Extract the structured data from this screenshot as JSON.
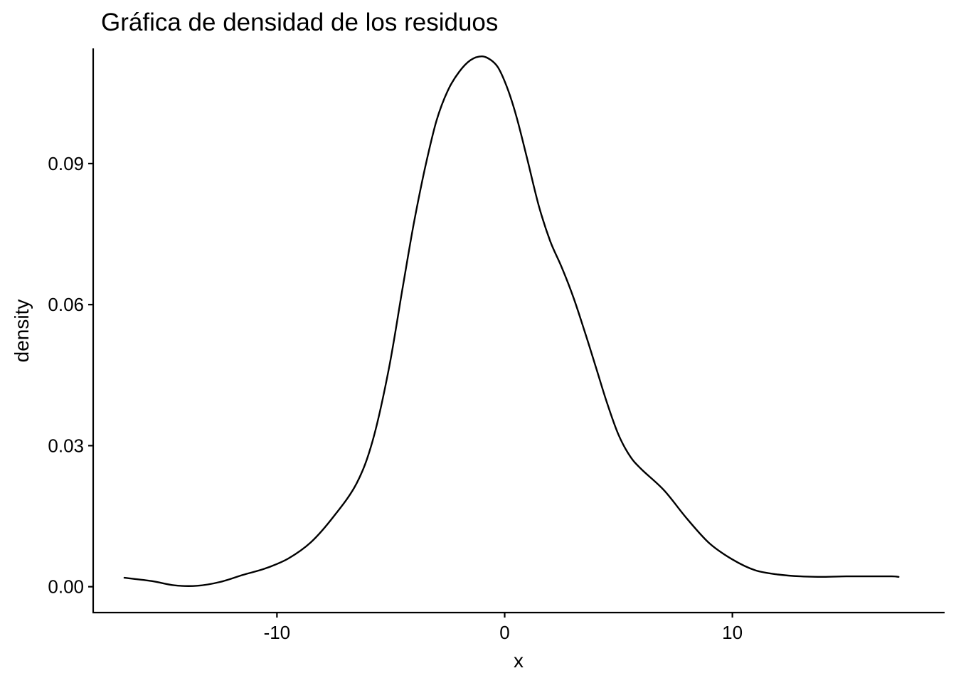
{
  "chart_data": {
    "type": "line",
    "title": "Gráfica de densidad de los residuos",
    "xlabel": "x",
    "ylabel": "density",
    "xlim": [
      -18.07,
      19.32
    ],
    "ylim": [
      -0.0055,
      0.1145
    ],
    "x_ticks": [
      -10,
      0,
      10
    ],
    "x_tick_labels": [
      "-10",
      "0",
      "10"
    ],
    "y_ticks": [
      0.0,
      0.03,
      0.06,
      0.09
    ],
    "y_tick_labels": [
      "0.00",
      "0.03",
      "0.06",
      "0.09"
    ],
    "grid": false,
    "legend": "none",
    "line_color": "#000000",
    "series": [
      {
        "x": [
          -16.7,
          -15.5,
          -14.5,
          -13.5,
          -12.5,
          -11.5,
          -10.5,
          -9.5,
          -8.5,
          -7.5,
          -6.5,
          -5.8,
          -5.1,
          -4.5,
          -4.0,
          -3.5,
          -3.0,
          -2.5,
          -2.0,
          -1.5,
          -1.0,
          -0.6,
          -0.3,
          0.0,
          0.3,
          0.6,
          1.0,
          1.5,
          2.0,
          2.5,
          3.0,
          3.5,
          4.0,
          4.5,
          5.0,
          5.5,
          6.0,
          7.0,
          8.0,
          9.0,
          10.0,
          11.0,
          12.0,
          13.0,
          14.0,
          15.0,
          16.0,
          17.0,
          17.3
        ],
        "y": [
          0.0019,
          0.0012,
          0.0003,
          0.0002,
          0.001,
          0.0025,
          0.0039,
          0.006,
          0.0095,
          0.015,
          0.022,
          0.031,
          0.046,
          0.063,
          0.077,
          0.089,
          0.099,
          0.1055,
          0.1095,
          0.112,
          0.1128,
          0.112,
          0.1105,
          0.1075,
          0.1035,
          0.0985,
          0.0908,
          0.081,
          0.0735,
          0.068,
          0.0618,
          0.0545,
          0.0468,
          0.039,
          0.0323,
          0.0278,
          0.025,
          0.0205,
          0.0145,
          0.0092,
          0.0058,
          0.0035,
          0.0026,
          0.0022,
          0.0021,
          0.0022,
          0.0022,
          0.0022,
          0.0021
        ]
      }
    ]
  }
}
